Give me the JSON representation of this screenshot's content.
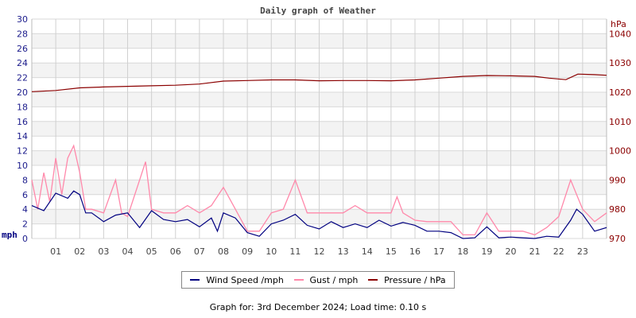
{
  "chart_data": {
    "type": "line",
    "title": "Daily graph of Weather",
    "x_ticks": [
      "01",
      "02",
      "03",
      "04",
      "05",
      "06",
      "07",
      "08",
      "09",
      "10",
      "11",
      "12",
      "13",
      "14",
      "15",
      "16",
      "17",
      "18",
      "19",
      "20",
      "21",
      "22",
      "23"
    ],
    "xlim": [
      0,
      24
    ],
    "y_left": {
      "label": "mph",
      "lim": [
        0,
        30
      ],
      "ticks": [
        0,
        2,
        4,
        6,
        8,
        10,
        12,
        14,
        16,
        18,
        20,
        22,
        24,
        26,
        28,
        30
      ],
      "color": "#1c1c8c"
    },
    "y_right": {
      "label": "hPa",
      "lim": [
        970,
        1045
      ],
      "ticks": [
        970,
        980,
        990,
        1000,
        1010,
        1020,
        1030,
        1040
      ],
      "color": "#8b0000"
    },
    "grid": true,
    "legend_placement": "bottom",
    "series": [
      {
        "name": "Wind Speed /mph",
        "axis": "left",
        "color": "#000080",
        "x": [
          0,
          0.5,
          1,
          1.5,
          1.75,
          2,
          2.25,
          2.5,
          3,
          3.5,
          4,
          4.5,
          5,
          5.5,
          6,
          6.5,
          7,
          7.5,
          7.75,
          8,
          8.5,
          9,
          9.5,
          10,
          10.5,
          11,
          11.5,
          12,
          12.5,
          13,
          13.5,
          14,
          14.5,
          15,
          15.5,
          16,
          16.5,
          17,
          17.5,
          18,
          18.5,
          19,
          19.5,
          20,
          20.5,
          21,
          21.5,
          22,
          22.5,
          22.75,
          23,
          23.5,
          24
        ],
        "y": [
          4.5,
          3.8,
          6.2,
          5.5,
          6.5,
          6,
          3.5,
          3.5,
          2.3,
          3.2,
          3.5,
          1.5,
          3.8,
          2.6,
          2.3,
          2.6,
          1.6,
          2.8,
          1.0,
          3.5,
          2.8,
          0.8,
          0.3,
          2,
          2.5,
          3.3,
          1.8,
          1.3,
          2.3,
          1.5,
          2,
          1.5,
          2.5,
          1.7,
          2.2,
          1.8,
          1.0,
          1.0,
          0.8,
          0,
          0.1,
          1.6,
          0.1,
          0.2,
          0.1,
          0,
          0.3,
          0.2,
          2.5,
          4,
          3.3,
          1.0,
          1.5
        ]
      },
      {
        "name": "Gust / mph",
        "axis": "left",
        "color": "#ff88aa",
        "x": [
          0,
          0.25,
          0.5,
          0.75,
          1,
          1.25,
          1.5,
          1.75,
          2,
          2.25,
          2.5,
          3,
          3.5,
          3.75,
          4,
          4.5,
          4.75,
          5,
          5.5,
          6,
          6.5,
          7,
          7.5,
          8,
          8.5,
          9,
          9.5,
          10,
          10.5,
          11,
          11.5,
          12,
          12.5,
          13,
          13.5,
          14,
          14.5,
          15,
          15.25,
          15.5,
          16,
          16.5,
          17,
          17.5,
          18,
          18.5,
          19,
          19.5,
          20,
          20.5,
          21,
          21.5,
          22,
          22.5,
          22.75,
          23,
          23.5,
          24
        ],
        "y": [
          8,
          4,
          9,
          5,
          11,
          6,
          11,
          12.7,
          9,
          4,
          4,
          3.5,
          8,
          3.5,
          3,
          8,
          10.5,
          4,
          3.5,
          3.5,
          4.5,
          3.5,
          4.5,
          7,
          4,
          1,
          1,
          3.5,
          4,
          8,
          3.5,
          3.5,
          3.5,
          3.5,
          4.5,
          3.5,
          3.5,
          3.5,
          5.7,
          3.5,
          2.5,
          2.3,
          2.3,
          2.3,
          0.5,
          0.5,
          3.5,
          1,
          1,
          1,
          0.5,
          1.5,
          3,
          8,
          6,
          4,
          2.3,
          3.5
        ]
      },
      {
        "name": "Pressure / hPa",
        "axis": "right",
        "color": "#8b0000",
        "x": [
          0,
          1,
          2,
          3,
          4,
          5,
          6,
          7,
          8,
          9,
          10,
          11,
          12,
          13,
          14,
          15,
          16,
          17,
          18,
          19,
          20,
          21,
          21.6,
          22.3,
          22.8,
          23.5,
          24
        ],
        "y": [
          1020.2,
          1020.6,
          1021.5,
          1021.8,
          1022.0,
          1022.2,
          1022.4,
          1022.8,
          1023.8,
          1024.0,
          1024.2,
          1024.2,
          1023.9,
          1024.0,
          1024.0,
          1023.9,
          1024.2,
          1024.8,
          1025.4,
          1025.7,
          1025.6,
          1025.4,
          1024.8,
          1024.3,
          1026.2,
          1026.0,
          1025.8
        ]
      }
    ]
  },
  "legend": {
    "items": [
      "Wind Speed /mph",
      "Gust / mph",
      "Pressure / hPa"
    ]
  },
  "footer": "Graph for: 3rd December 2024; Load time: 0.10 s"
}
